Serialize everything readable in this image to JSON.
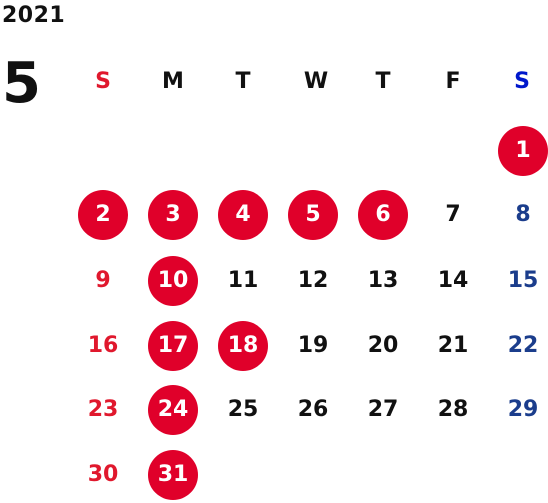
{
  "year": "2021",
  "month": "5",
  "weekdays": [
    "S",
    "M",
    "T",
    "W",
    "T",
    "F",
    "S"
  ],
  "colors": {
    "sunday": "#e0182d",
    "saturday": "#1b3d8c",
    "weekday": "#111111",
    "holiday_circle": "#e0002a",
    "holiday_text": "#ffffff"
  },
  "weeks": [
    [
      null,
      null,
      null,
      null,
      null,
      null,
      {
        "d": "1",
        "holiday": true
      }
    ],
    [
      {
        "d": "2",
        "holiday": true
      },
      {
        "d": "3",
        "holiday": true
      },
      {
        "d": "4",
        "holiday": true
      },
      {
        "d": "5",
        "holiday": true
      },
      {
        "d": "6",
        "holiday": true
      },
      {
        "d": "7",
        "holiday": false
      },
      {
        "d": "8",
        "holiday": false
      }
    ],
    [
      {
        "d": "9",
        "holiday": false
      },
      {
        "d": "10",
        "holiday": true
      },
      {
        "d": "11",
        "holiday": false
      },
      {
        "d": "12",
        "holiday": false
      },
      {
        "d": "13",
        "holiday": false
      },
      {
        "d": "14",
        "holiday": false
      },
      {
        "d": "15",
        "holiday": false
      }
    ],
    [
      {
        "d": "16",
        "holiday": false
      },
      {
        "d": "17",
        "holiday": true
      },
      {
        "d": "18",
        "holiday": true
      },
      {
        "d": "19",
        "holiday": false
      },
      {
        "d": "20",
        "holiday": false
      },
      {
        "d": "21",
        "holiday": false
      },
      {
        "d": "22",
        "holiday": false
      }
    ],
    [
      {
        "d": "23",
        "holiday": false
      },
      {
        "d": "24",
        "holiday": true
      },
      {
        "d": "25",
        "holiday": false
      },
      {
        "d": "26",
        "holiday": false
      },
      {
        "d": "27",
        "holiday": false
      },
      {
        "d": "28",
        "holiday": false
      },
      {
        "d": "29",
        "holiday": false
      }
    ],
    [
      {
        "d": "30",
        "holiday": false
      },
      {
        "d": "31",
        "holiday": true
      },
      null,
      null,
      null,
      null,
      null
    ]
  ]
}
